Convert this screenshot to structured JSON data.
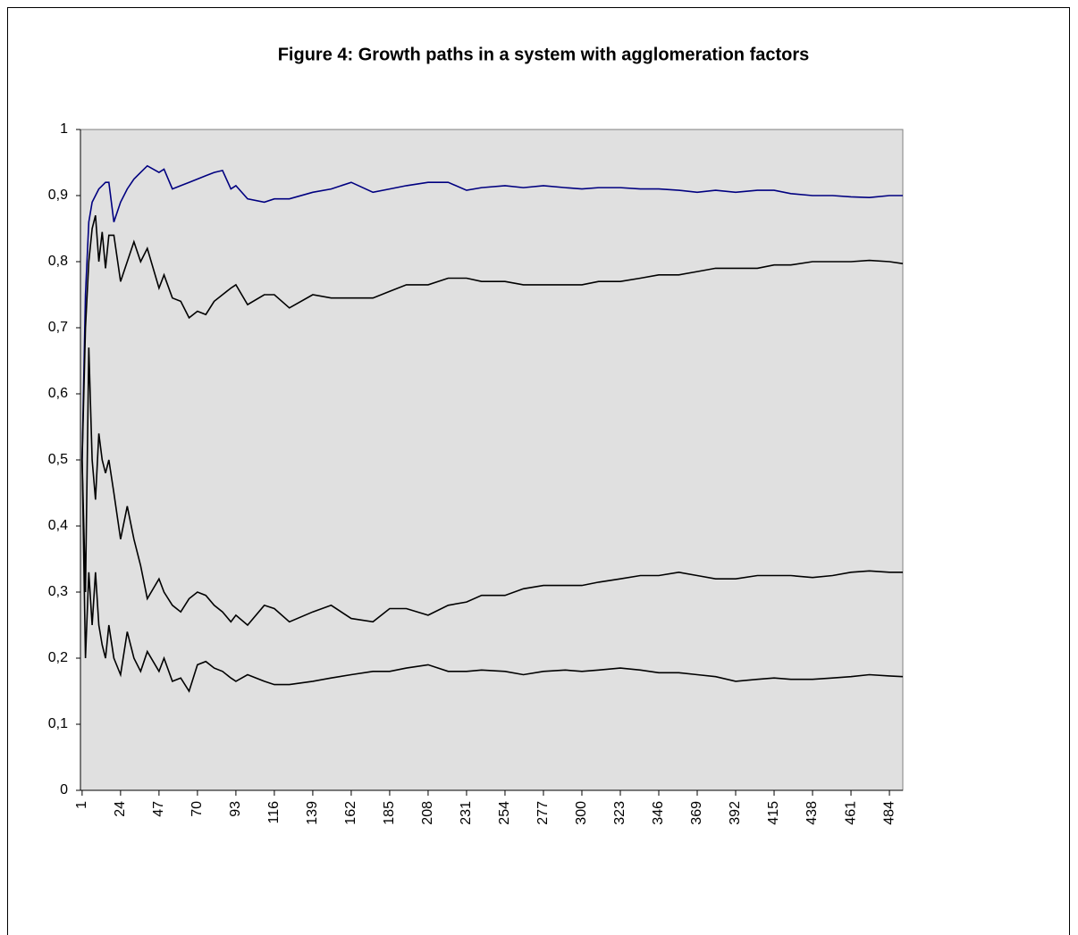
{
  "chart_data": {
    "type": "line",
    "title": "Figure 4: Growth paths in a system with agglomeration factors",
    "x": [
      1,
      3,
      5,
      7,
      9,
      11,
      13,
      15,
      17,
      20,
      24,
      28,
      32,
      36,
      40,
      47,
      50,
      55,
      60,
      65,
      70,
      75,
      80,
      85,
      90,
      93,
      100,
      110,
      116,
      125,
      139,
      150,
      162,
      175,
      185,
      195,
      208,
      220,
      231,
      240,
      254,
      265,
      277,
      290,
      300,
      310,
      323,
      335,
      346,
      358,
      369,
      380,
      392,
      405,
      415,
      425,
      438,
      450,
      461,
      472,
      484,
      492
    ],
    "series": [
      {
        "color": "#000080",
        "values": [
          0.5,
          0.75,
          0.86,
          0.89,
          0.9,
          0.91,
          0.915,
          0.92,
          0.92,
          0.86,
          0.89,
          0.91,
          0.925,
          0.935,
          0.945,
          0.935,
          0.94,
          0.91,
          0.915,
          0.92,
          0.925,
          0.93,
          0.935,
          0.938,
          0.91,
          0.915,
          0.895,
          0.89,
          0.895,
          0.895,
          0.905,
          0.91,
          0.92,
          0.905,
          0.91,
          0.915,
          0.92,
          0.92,
          0.908,
          0.912,
          0.915,
          0.912,
          0.915,
          0.912,
          0.91,
          0.912,
          0.912,
          0.91,
          0.91,
          0.908,
          0.905,
          0.908,
          0.905,
          0.908,
          0.908,
          0.903,
          0.9,
          0.9,
          0.898,
          0.897,
          0.9,
          0.9
        ]
      },
      {
        "color": "#000000",
        "values": [
          0.5,
          0.7,
          0.8,
          0.85,
          0.87,
          0.8,
          0.845,
          0.79,
          0.84,
          0.84,
          0.77,
          0.8,
          0.83,
          0.8,
          0.82,
          0.76,
          0.78,
          0.745,
          0.74,
          0.715,
          0.725,
          0.72,
          0.74,
          0.75,
          0.76,
          0.765,
          0.735,
          0.75,
          0.75,
          0.73,
          0.75,
          0.745,
          0.745,
          0.745,
          0.755,
          0.765,
          0.765,
          0.775,
          0.775,
          0.77,
          0.77,
          0.765,
          0.765,
          0.765,
          0.765,
          0.77,
          0.77,
          0.775,
          0.78,
          0.78,
          0.785,
          0.79,
          0.79,
          0.79,
          0.795,
          0.795,
          0.8,
          0.8,
          0.8,
          0.802,
          0.8,
          0.797
        ]
      },
      {
        "color": "#000000",
        "values": [
          0.5,
          0.3,
          0.67,
          0.5,
          0.44,
          0.54,
          0.5,
          0.48,
          0.5,
          0.45,
          0.38,
          0.43,
          0.38,
          0.34,
          0.29,
          0.32,
          0.3,
          0.28,
          0.27,
          0.29,
          0.3,
          0.295,
          0.28,
          0.27,
          0.255,
          0.265,
          0.25,
          0.28,
          0.275,
          0.255,
          0.27,
          0.28,
          0.26,
          0.255,
          0.275,
          0.275,
          0.265,
          0.28,
          0.285,
          0.295,
          0.295,
          0.305,
          0.31,
          0.31,
          0.31,
          0.315,
          0.32,
          0.325,
          0.325,
          0.33,
          0.325,
          0.32,
          0.32,
          0.325,
          0.325,
          0.325,
          0.322,
          0.325,
          0.33,
          0.332,
          0.33,
          0.33
        ]
      },
      {
        "color": "#000000",
        "values": [
          0.5,
          0.2,
          0.33,
          0.25,
          0.33,
          0.25,
          0.22,
          0.2,
          0.25,
          0.2,
          0.175,
          0.24,
          0.2,
          0.18,
          0.21,
          0.18,
          0.2,
          0.165,
          0.17,
          0.15,
          0.19,
          0.195,
          0.185,
          0.18,
          0.17,
          0.165,
          0.175,
          0.165,
          0.16,
          0.16,
          0.165,
          0.17,
          0.175,
          0.18,
          0.18,
          0.185,
          0.19,
          0.18,
          0.18,
          0.182,
          0.18,
          0.175,
          0.18,
          0.182,
          0.18,
          0.182,
          0.185,
          0.182,
          0.178,
          0.178,
          0.175,
          0.172,
          0.165,
          0.168,
          0.17,
          0.168,
          0.168,
          0.17,
          0.172,
          0.175,
          0.173,
          0.172
        ]
      }
    ],
    "xlim": [
      0,
      492
    ],
    "xticks": [
      1,
      24,
      47,
      70,
      93,
      116,
      139,
      162,
      185,
      208,
      231,
      254,
      277,
      300,
      323,
      346,
      369,
      392,
      415,
      438,
      461,
      484
    ],
    "ylim": [
      0,
      1
    ],
    "yticks": [
      0,
      {
        "value": 0.1,
        "label": "0,1"
      },
      {
        "value": 0.2,
        "label": "0,2"
      },
      {
        "value": 0.3,
        "label": "0,3"
      },
      {
        "value": 0.4,
        "label": "0,4"
      },
      {
        "value": 0.5,
        "label": "0,5"
      },
      {
        "value": 0.6,
        "label": "0,6"
      },
      {
        "value": 0.7,
        "label": "0,7"
      },
      {
        "value": 0.8,
        "label": "0,8"
      },
      {
        "value": 0.9,
        "label": "0,9"
      },
      1
    ],
    "grid": false
  }
}
